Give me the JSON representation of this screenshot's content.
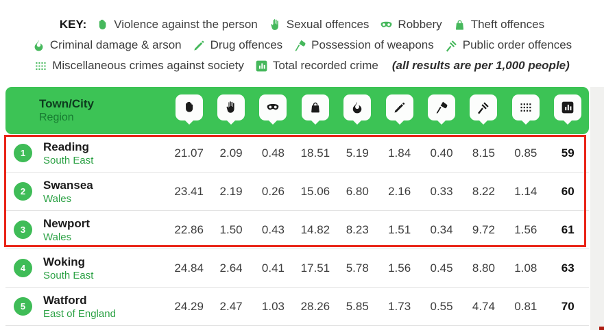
{
  "key": {
    "label": "KEY:",
    "items": [
      {
        "icon": "fist",
        "label": "Violence against the person"
      },
      {
        "icon": "hand",
        "label": "Sexual offences"
      },
      {
        "icon": "mask",
        "label": "Robbery"
      },
      {
        "icon": "bag",
        "label": "Theft offences"
      },
      {
        "icon": "fire",
        "label": "Criminal damage & arson"
      },
      {
        "icon": "syringe",
        "label": "Drug offences"
      },
      {
        "icon": "knife",
        "label": "Possession of weapons"
      },
      {
        "icon": "gavel",
        "label": "Public order offences"
      },
      {
        "icon": "dots-grid",
        "label": "Miscellaneous crimes against society"
      },
      {
        "icon": "chart",
        "label": "Total recorded crime"
      }
    ],
    "note": "(all results are per 1,000 people)"
  },
  "table": {
    "header": {
      "title": "Town/City",
      "subtitle": "Region"
    },
    "rows": [
      {
        "rank": "1",
        "town": "Reading",
        "region": "South East",
        "values": [
          "21.07",
          "2.09",
          "0.48",
          "18.51",
          "5.19",
          "1.84",
          "0.40",
          "8.15",
          "0.85"
        ],
        "total": "59"
      },
      {
        "rank": "2",
        "town": "Swansea",
        "region": "Wales",
        "values": [
          "23.41",
          "2.19",
          "0.26",
          "15.06",
          "6.80",
          "2.16",
          "0.33",
          "8.22",
          "1.14"
        ],
        "total": "60"
      },
      {
        "rank": "3",
        "town": "Newport",
        "region": "Wales",
        "values": [
          "22.86",
          "1.50",
          "0.43",
          "14.82",
          "8.23",
          "1.51",
          "0.34",
          "9.72",
          "1.56"
        ],
        "total": "61"
      },
      {
        "rank": "4",
        "town": "Woking",
        "region": "South East",
        "values": [
          "24.84",
          "2.64",
          "0.41",
          "17.51",
          "5.78",
          "1.56",
          "0.45",
          "8.80",
          "1.08"
        ],
        "total": "63"
      },
      {
        "rank": "5",
        "town": "Watford",
        "region": "East of England",
        "values": [
          "24.29",
          "2.47",
          "1.03",
          "28.26",
          "5.85",
          "1.73",
          "0.55",
          "4.74",
          "0.81"
        ],
        "total": "70"
      }
    ]
  },
  "colors": {
    "header_green": "#3cc355",
    "badge_green": "#3fbc57",
    "key_icon_green": "#46b85c",
    "region_green": "#2ba144",
    "highlight_red": "#e92417"
  },
  "chart_data": {
    "type": "table",
    "title": "Crime rates per town/city (all results are per 1,000 people)",
    "columns": [
      "Rank",
      "Town/City",
      "Region",
      "Violence against the person",
      "Sexual offences",
      "Robbery",
      "Theft offences",
      "Criminal damage & arson",
      "Drug offences",
      "Possession of weapons",
      "Public order offences",
      "Miscellaneous crimes against society",
      "Total recorded crime"
    ],
    "rows": [
      [
        1,
        "Reading",
        "South East",
        21.07,
        2.09,
        0.48,
        18.51,
        5.19,
        1.84,
        0.4,
        8.15,
        0.85,
        59
      ],
      [
        2,
        "Swansea",
        "Wales",
        23.41,
        2.19,
        0.26,
        15.06,
        6.8,
        2.16,
        0.33,
        8.22,
        1.14,
        60
      ],
      [
        3,
        "Newport",
        "Wales",
        22.86,
        1.5,
        0.43,
        14.82,
        8.23,
        1.51,
        0.34,
        9.72,
        1.56,
        61
      ],
      [
        4,
        "Woking",
        "South East",
        24.84,
        2.64,
        0.41,
        17.51,
        5.78,
        1.56,
        0.45,
        8.8,
        1.08,
        63
      ],
      [
        5,
        "Watford",
        "East of England",
        24.29,
        2.47,
        1.03,
        28.26,
        5.85,
        1.73,
        0.55,
        4.74,
        0.81,
        70
      ]
    ],
    "highlighted_row_ranks": [
      1,
      2,
      3
    ],
    "units": "per 1,000 people"
  }
}
